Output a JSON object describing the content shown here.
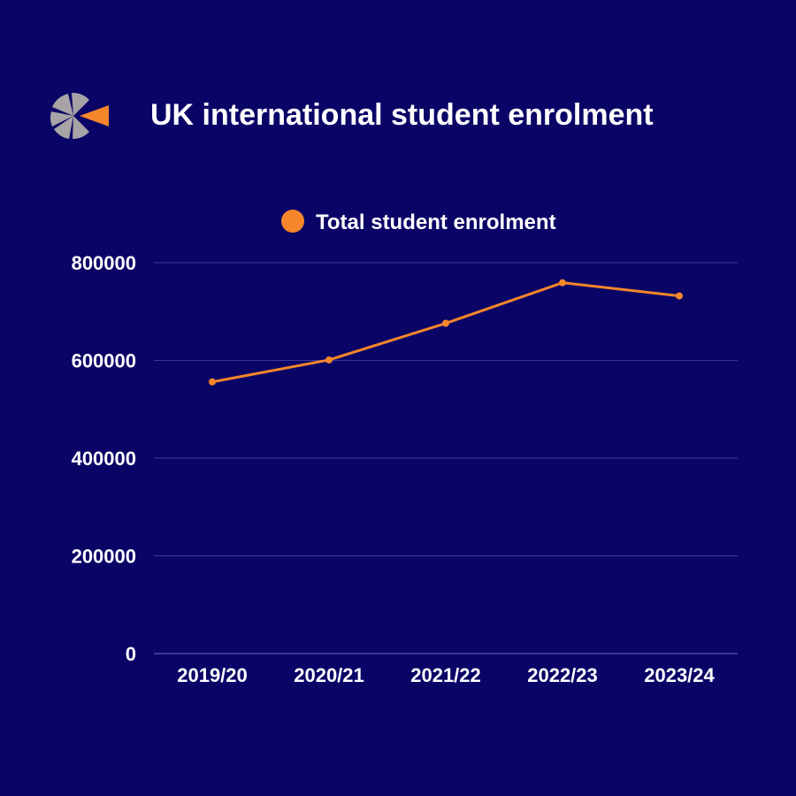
{
  "header": {
    "title": "UK international student enrolment",
    "logo_icon": "pinwheel-logo-icon"
  },
  "colors": {
    "background": "#0a0467",
    "line": "#f5862a",
    "text": "#ffffff",
    "grid": "#3a3a9a",
    "logo_grey": "#a7a3a6",
    "logo_orange": "#f5862a"
  },
  "chart_data": {
    "type": "line",
    "title": "UK international student enrolment",
    "categories": [
      "2019/20",
      "2020/21",
      "2021/22",
      "2022/23",
      "2023/24"
    ],
    "series": [
      {
        "name": "Total student enrolment",
        "values": [
          556000,
          601000,
          676000,
          759000,
          732000
        ]
      }
    ],
    "yticks": [
      0,
      200000,
      400000,
      600000,
      800000
    ],
    "ylim": [
      0,
      800000
    ],
    "xlabel": "",
    "ylabel": "",
    "legend_position": "top-center",
    "grid": true
  }
}
